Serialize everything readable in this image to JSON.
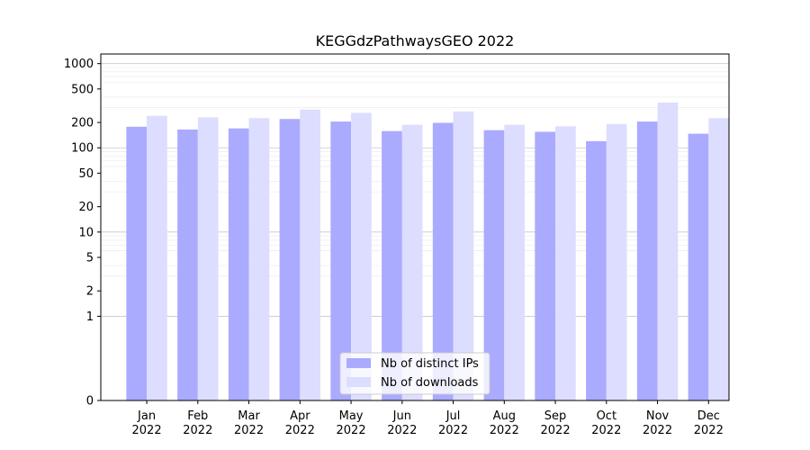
{
  "chart_data": {
    "type": "bar",
    "title": "KEGGdzPathwaysGEO 2022",
    "xlabel": "",
    "ylabel": "",
    "yscale": "symlog",
    "ylim": [
      0,
      1300
    ],
    "grid": true,
    "legend_position": "bottom-center",
    "categories": [
      [
        "Jan",
        "2022"
      ],
      [
        "Feb",
        "2022"
      ],
      [
        "Mar",
        "2022"
      ],
      [
        "Apr",
        "2022"
      ],
      [
        "May",
        "2022"
      ],
      [
        "Jun",
        "2022"
      ],
      [
        "Jul",
        "2022"
      ],
      [
        "Aug",
        "2022"
      ],
      [
        "Sep",
        "2022"
      ],
      [
        "Oct",
        "2022"
      ],
      [
        "Nov",
        "2022"
      ],
      [
        "Dec",
        "2022"
      ]
    ],
    "yticks": [
      {
        "value": 0,
        "label": "0"
      },
      {
        "value": 1,
        "label": "1"
      },
      {
        "value": 2,
        "label": "2"
      },
      {
        "value": 5,
        "label": "5"
      },
      {
        "value": 10,
        "label": "10"
      },
      {
        "value": 20,
        "label": "20"
      },
      {
        "value": 50,
        "label": "50"
      },
      {
        "value": 100,
        "label": "100"
      },
      {
        "value": 200,
        "label": "200"
      },
      {
        "value": 500,
        "label": "500"
      },
      {
        "value": 1000,
        "label": "1000"
      }
    ],
    "series": [
      {
        "name": "Nb of distinct IPs",
        "color": "#aaaaff",
        "values": [
          178,
          165,
          170,
          220,
          205,
          158,
          198,
          162,
          155,
          120,
          205,
          147
        ]
      },
      {
        "name": "Nb of downloads",
        "color": "#ddddff",
        "values": [
          240,
          230,
          225,
          285,
          260,
          188,
          270,
          188,
          180,
          192,
          345,
          225
        ]
      }
    ]
  }
}
